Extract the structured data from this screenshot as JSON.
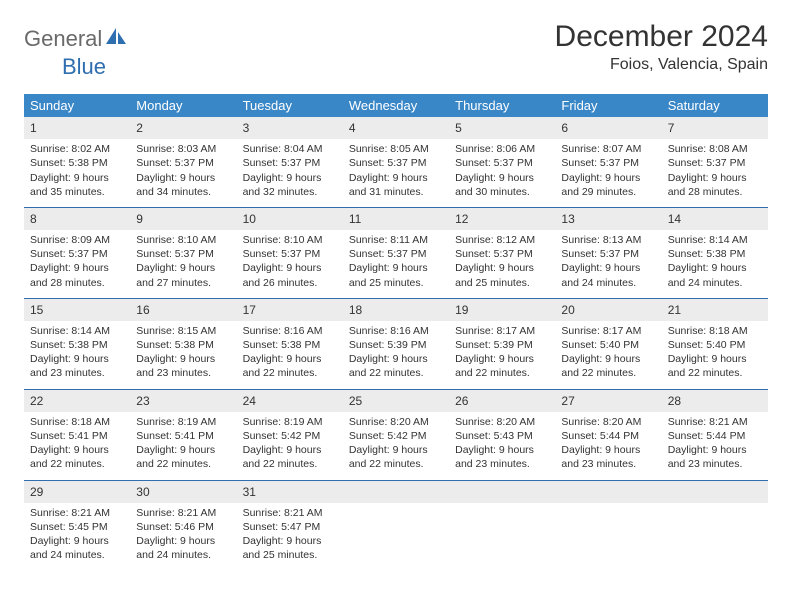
{
  "logo": {
    "part1": "General",
    "part2": "Blue"
  },
  "title": "December 2024",
  "location": "Foios, Valencia, Spain",
  "colors": {
    "header_bg": "#3a87c8",
    "rule": "#2f6fb0",
    "daynum_bg": "#ececec",
    "logo_grey": "#6a6a6a",
    "logo_blue": "#2f6fb0"
  },
  "weekdays": [
    "Sunday",
    "Monday",
    "Tuesday",
    "Wednesday",
    "Thursday",
    "Friday",
    "Saturday"
  ],
  "days": {
    "1": {
      "sunrise": "8:02 AM",
      "sunset": "5:38 PM",
      "daylight": "9 hours and 35 minutes."
    },
    "2": {
      "sunrise": "8:03 AM",
      "sunset": "5:37 PM",
      "daylight": "9 hours and 34 minutes."
    },
    "3": {
      "sunrise": "8:04 AM",
      "sunset": "5:37 PM",
      "daylight": "9 hours and 32 minutes."
    },
    "4": {
      "sunrise": "8:05 AM",
      "sunset": "5:37 PM",
      "daylight": "9 hours and 31 minutes."
    },
    "5": {
      "sunrise": "8:06 AM",
      "sunset": "5:37 PM",
      "daylight": "9 hours and 30 minutes."
    },
    "6": {
      "sunrise": "8:07 AM",
      "sunset": "5:37 PM",
      "daylight": "9 hours and 29 minutes."
    },
    "7": {
      "sunrise": "8:08 AM",
      "sunset": "5:37 PM",
      "daylight": "9 hours and 28 minutes."
    },
    "8": {
      "sunrise": "8:09 AM",
      "sunset": "5:37 PM",
      "daylight": "9 hours and 28 minutes."
    },
    "9": {
      "sunrise": "8:10 AM",
      "sunset": "5:37 PM",
      "daylight": "9 hours and 27 minutes."
    },
    "10": {
      "sunrise": "8:10 AM",
      "sunset": "5:37 PM",
      "daylight": "9 hours and 26 minutes."
    },
    "11": {
      "sunrise": "8:11 AM",
      "sunset": "5:37 PM",
      "daylight": "9 hours and 25 minutes."
    },
    "12": {
      "sunrise": "8:12 AM",
      "sunset": "5:37 PM",
      "daylight": "9 hours and 25 minutes."
    },
    "13": {
      "sunrise": "8:13 AM",
      "sunset": "5:37 PM",
      "daylight": "9 hours and 24 minutes."
    },
    "14": {
      "sunrise": "8:14 AM",
      "sunset": "5:38 PM",
      "daylight": "9 hours and 24 minutes."
    },
    "15": {
      "sunrise": "8:14 AM",
      "sunset": "5:38 PM",
      "daylight": "9 hours and 23 minutes."
    },
    "16": {
      "sunrise": "8:15 AM",
      "sunset": "5:38 PM",
      "daylight": "9 hours and 23 minutes."
    },
    "17": {
      "sunrise": "8:16 AM",
      "sunset": "5:38 PM",
      "daylight": "9 hours and 22 minutes."
    },
    "18": {
      "sunrise": "8:16 AM",
      "sunset": "5:39 PM",
      "daylight": "9 hours and 22 minutes."
    },
    "19": {
      "sunrise": "8:17 AM",
      "sunset": "5:39 PM",
      "daylight": "9 hours and 22 minutes."
    },
    "20": {
      "sunrise": "8:17 AM",
      "sunset": "5:40 PM",
      "daylight": "9 hours and 22 minutes."
    },
    "21": {
      "sunrise": "8:18 AM",
      "sunset": "5:40 PM",
      "daylight": "9 hours and 22 minutes."
    },
    "22": {
      "sunrise": "8:18 AM",
      "sunset": "5:41 PM",
      "daylight": "9 hours and 22 minutes."
    },
    "23": {
      "sunrise": "8:19 AM",
      "sunset": "5:41 PM",
      "daylight": "9 hours and 22 minutes."
    },
    "24": {
      "sunrise": "8:19 AM",
      "sunset": "5:42 PM",
      "daylight": "9 hours and 22 minutes."
    },
    "25": {
      "sunrise": "8:20 AM",
      "sunset": "5:42 PM",
      "daylight": "9 hours and 22 minutes."
    },
    "26": {
      "sunrise": "8:20 AM",
      "sunset": "5:43 PM",
      "daylight": "9 hours and 23 minutes."
    },
    "27": {
      "sunrise": "8:20 AM",
      "sunset": "5:44 PM",
      "daylight": "9 hours and 23 minutes."
    },
    "28": {
      "sunrise": "8:21 AM",
      "sunset": "5:44 PM",
      "daylight": "9 hours and 23 minutes."
    },
    "29": {
      "sunrise": "8:21 AM",
      "sunset": "5:45 PM",
      "daylight": "9 hours and 24 minutes."
    },
    "30": {
      "sunrise": "8:21 AM",
      "sunset": "5:46 PM",
      "daylight": "9 hours and 24 minutes."
    },
    "31": {
      "sunrise": "8:21 AM",
      "sunset": "5:47 PM",
      "daylight": "9 hours and 25 minutes."
    }
  },
  "labels": {
    "sunrise": "Sunrise: ",
    "sunset": "Sunset: ",
    "daylight": "Daylight: "
  },
  "layout": {
    "first_weekday_index": 0,
    "total_days": 31
  }
}
